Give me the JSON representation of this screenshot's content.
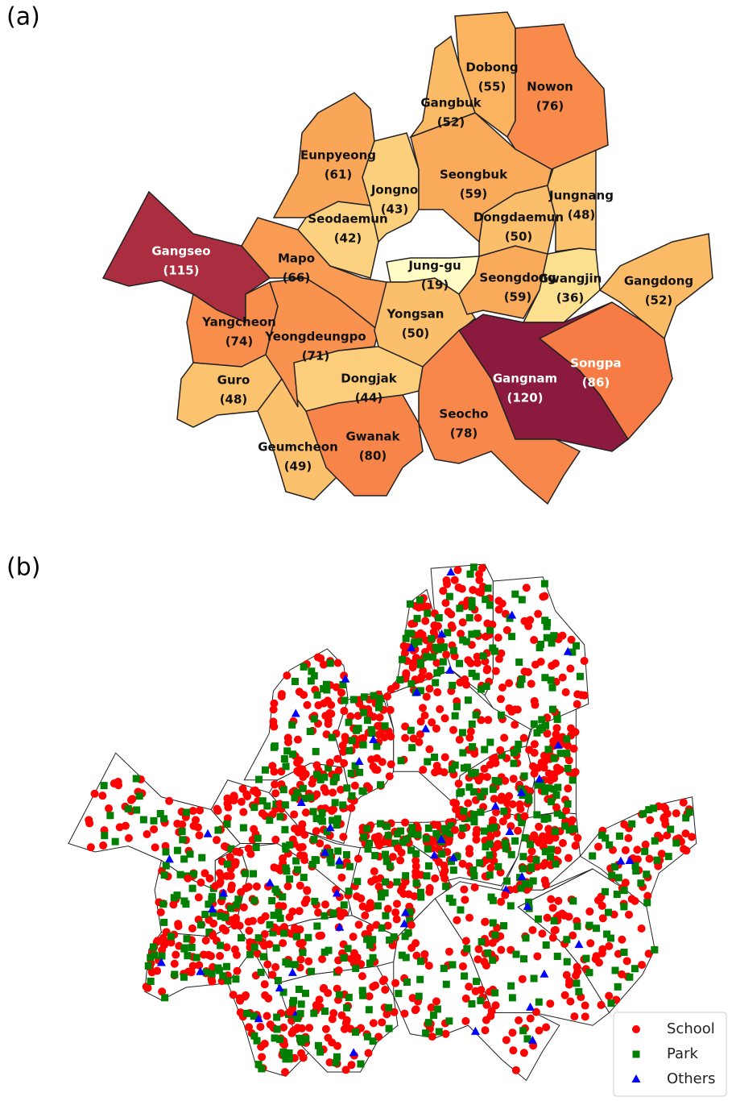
{
  "chart_data": {
    "type": "choropleth",
    "panel_label": "(a)",
    "categories": [
      "Gangseo",
      "Yangcheon",
      "Guro",
      "Geumcheon",
      "Gwanak",
      "Dongjak",
      "Yeongdeungpo",
      "Mapo",
      "Seodaemun",
      "Eunpyeong",
      "Jongno",
      "Jung-gu",
      "Yongsan",
      "Seongdong",
      "Gwangjin",
      "Dongdaemun",
      "Jungnang",
      "Seongbuk",
      "Gangbuk",
      "Dobong",
      "Nowon",
      "Gangdong",
      "Songpa",
      "Gangnam",
      "Seocho"
    ],
    "values": [
      115,
      74,
      48,
      49,
      80,
      44,
      71,
      66,
      42,
      61,
      43,
      19,
      50,
      59,
      36,
      50,
      48,
      59,
      52,
      55,
      76,
      52,
      86,
      120,
      78
    ],
    "value_labels": [
      "(115)",
      "(74)",
      "(48)",
      "(49)",
      "(80)",
      "(44)",
      "(71)",
      "(66)",
      "(42)",
      "(61)",
      "(43)",
      "(19)",
      "(50)",
      "(59)",
      "(36)",
      "(50)",
      "(48)",
      "(59)",
      "(52)",
      "(55)",
      "(76)",
      "(52)",
      "(86)",
      "(120)",
      "(78)"
    ],
    "colors": [
      "#fffcc6",
      "#fde08f",
      "#fbb863",
      "#f8944f",
      "#f77a45",
      "#f25c40",
      "#8b1a3e"
    ]
  },
  "panel_b": {
    "label": "(b)",
    "legend": [
      {
        "name": "School",
        "color": "#ff0000"
      },
      {
        "name": "Park",
        "color": "#007f00"
      },
      {
        "name": "Others",
        "color": "#0000ff"
      }
    ]
  }
}
